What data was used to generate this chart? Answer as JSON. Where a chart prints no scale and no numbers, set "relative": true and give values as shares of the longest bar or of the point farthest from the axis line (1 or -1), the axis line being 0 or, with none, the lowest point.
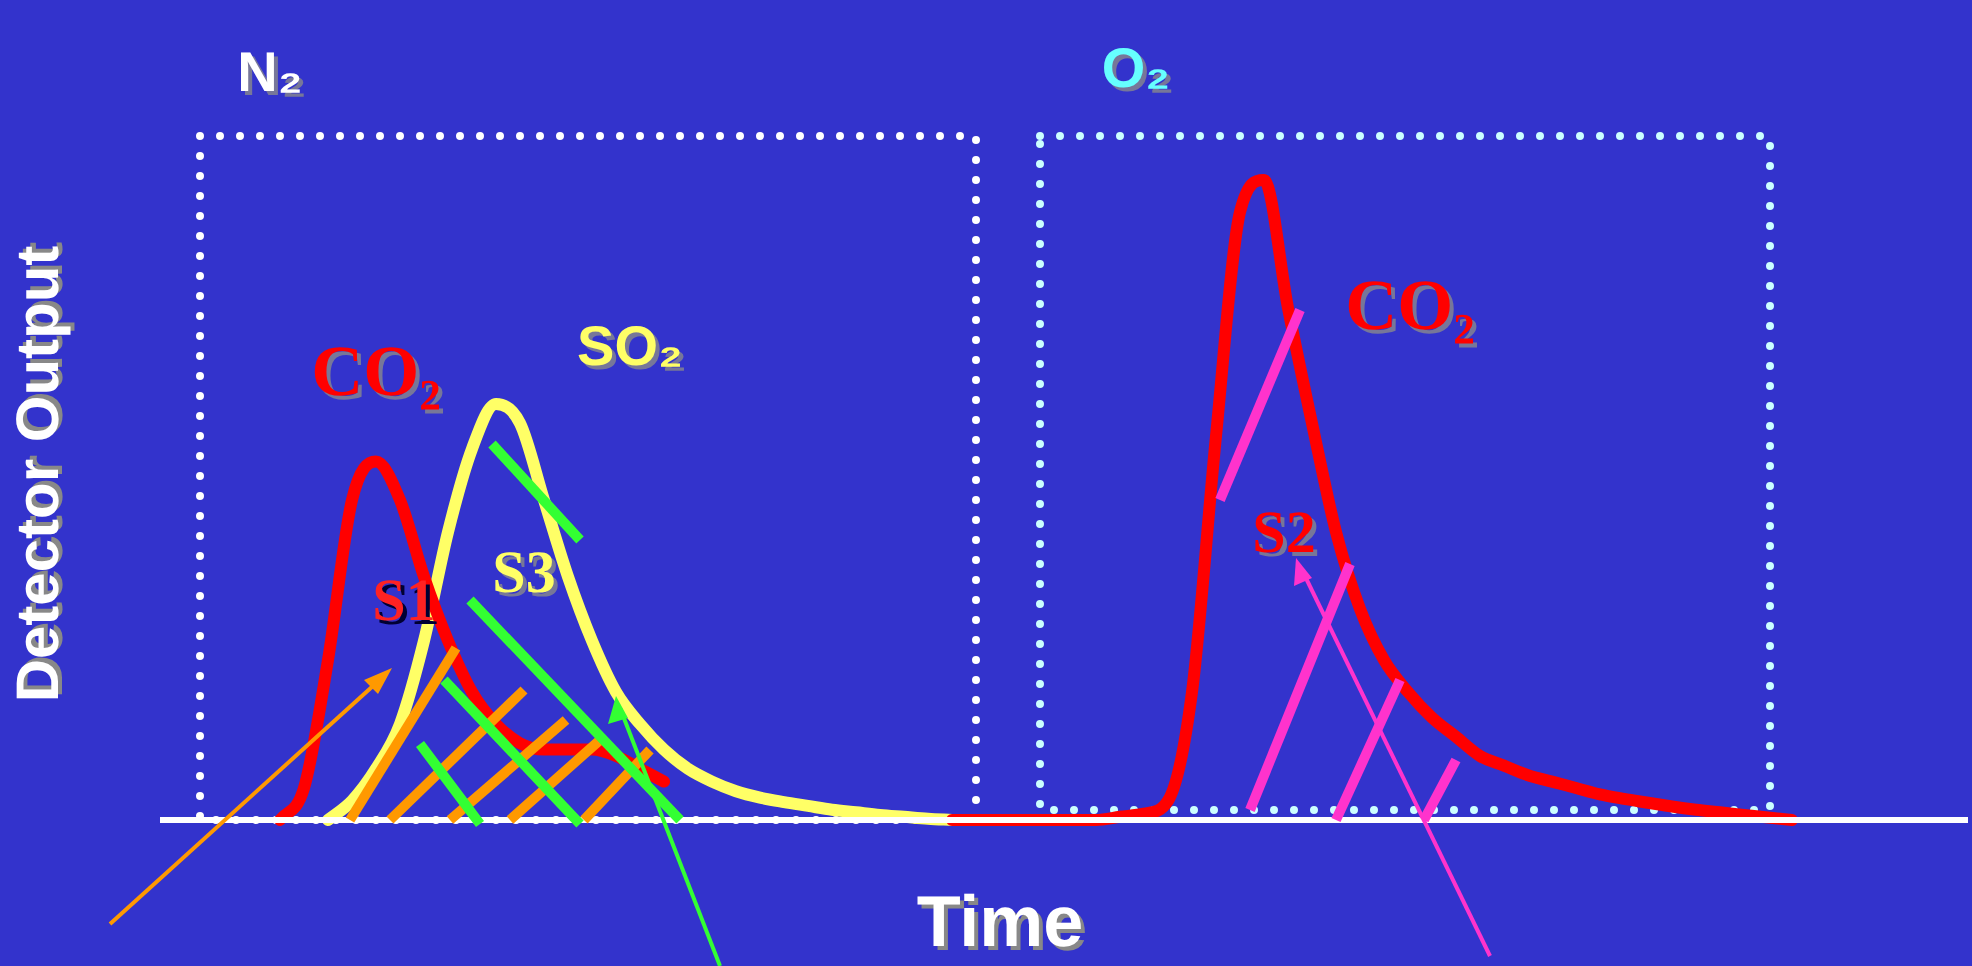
{
  "chart_data": {
    "type": "line",
    "relative": true,
    "title": null,
    "xlabel": "Time",
    "ylabel": "Detector Output",
    "legend": false,
    "marker": "none",
    "line_style": "solid",
    "categories": [
      null,
      null,
      null,
      null,
      null,
      null,
      null,
      null,
      null,
      null,
      null,
      null,
      null,
      null,
      null,
      null,
      null,
      null,
      null,
      null,
      null,
      null,
      null,
      null,
      null,
      null,
      null,
      null,
      null,
      null,
      null,
      null,
      null,
      null,
      null,
      null,
      null,
      null,
      null,
      null,
      null,
      null,
      null,
      null,
      null,
      null,
      null,
      null,
      null,
      null,
      null,
      null,
      null,
      null,
      null,
      null,
      null,
      null,
      null,
      null,
      null,
      null,
      null,
      null,
      null,
      null,
      null,
      null,
      null,
      null,
      null,
      null,
      null,
      null,
      null,
      null
    ],
    "series": [
      {
        "name": "CO₂",
        "color": "#ff0000",
        "values": [
          null,
          null,
          null,
          null,
          null,
          0,
          0.05,
          0.25,
          0.5,
          0.56,
          0.5,
          0.38,
          0.28,
          0.2,
          0.15,
          0.12,
          0.11,
          0.11,
          0.11,
          0.1,
          0.08,
          0.06,
          null,
          null,
          null,
          null,
          null,
          null,
          null,
          null,
          null,
          null,
          null,
          0,
          0,
          0,
          0,
          0,
          0,
          0,
          0.005,
          0.01,
          0.03,
          0.2,
          0.6,
          0.95,
          1,
          0.8,
          0.62,
          0.45,
          0.33,
          0.25,
          0.2,
          0.16,
          0.13,
          0.1,
          0.085,
          0.07,
          0.06,
          0.05,
          0.04,
          0.033,
          0.027,
          0.021,
          0.016,
          0.012,
          0.008,
          0.004,
          0,
          null,
          null,
          null,
          null,
          null,
          null,
          null
        ]
      },
      {
        "name": "SO₂",
        "color": "#ffff66",
        "values": [
          null,
          null,
          null,
          null,
          null,
          null,
          null,
          0,
          0.03,
          0.08,
          0.15,
          0.28,
          0.45,
          0.58,
          0.65,
          0.62,
          0.5,
          0.38,
          0.28,
          0.2,
          0.15,
          0.11,
          0.08,
          0.06,
          0.045,
          0.035,
          0.028,
          0.022,
          0.016,
          0.012,
          0.008,
          0.005,
          0.002,
          0,
          null,
          null,
          null,
          null,
          null,
          null,
          null,
          null,
          null,
          null,
          null,
          null,
          null,
          null,
          null,
          null,
          null,
          null,
          null,
          null,
          null,
          null,
          null,
          null,
          null,
          null,
          null,
          null,
          null,
          null,
          null,
          null,
          null,
          null,
          null,
          null,
          null,
          null,
          null,
          null,
          null,
          null
        ]
      }
    ],
    "annotations": [
      "N₂",
      "O₂",
      "CO₂",
      "S1",
      "S2",
      "S3"
    ]
  }
}
